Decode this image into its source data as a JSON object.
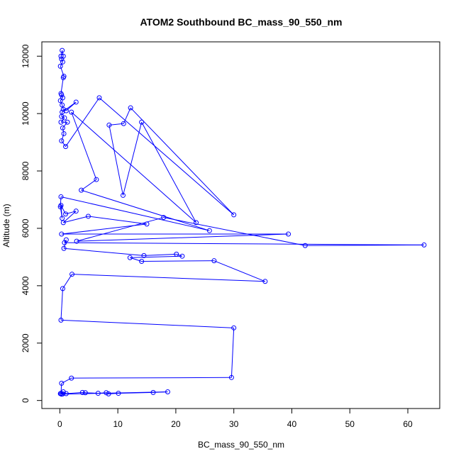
{
  "chart_data": {
    "type": "line",
    "title": "ATOM2 Southbound BC_mass_90_550_nm",
    "xlabel": "BC_mass_90_550_nm",
    "ylabel": "Altitude (m)",
    "xlim": [
      -3.1,
      65.5
    ],
    "ylim": [
      -280,
      12500
    ],
    "x_ticks": [
      0,
      10,
      20,
      30,
      40,
      50,
      60
    ],
    "y_ticks": [
      0,
      2000,
      4000,
      6000,
      8000,
      10000,
      12000
    ],
    "grid": false,
    "legend": "none",
    "markers": "open-circle",
    "color": "#0000ff",
    "series": [
      {
        "values": [
          [
            0.2,
            12000
          ],
          [
            0.4,
            12200
          ],
          [
            0.6,
            12000
          ],
          [
            0.3,
            11900
          ],
          [
            0.5,
            11800
          ],
          [
            0.1,
            11650
          ],
          [
            0.7,
            11300
          ],
          [
            0.6,
            11250
          ],
          [
            0.2,
            10700
          ],
          [
            0.3,
            10650
          ],
          [
            0.5,
            10550
          ],
          [
            0.1,
            10450
          ],
          [
            0.4,
            10300
          ],
          [
            0.6,
            10150
          ],
          [
            1.1,
            10100
          ],
          [
            2.8,
            10400
          ],
          [
            0.4,
            10050
          ],
          [
            0.3,
            9900
          ],
          [
            0.8,
            9850
          ],
          [
            0.2,
            9700
          ],
          [
            1.3,
            9700
          ],
          [
            0.5,
            9500
          ],
          [
            0.7,
            9300
          ],
          [
            0.3,
            9050
          ],
          [
            1.0,
            8850
          ],
          [
            6.8,
            10550
          ],
          [
            30.0,
            6470
          ],
          [
            12.2,
            10200
          ],
          [
            11.0,
            9650
          ],
          [
            8.5,
            9600
          ],
          [
            10.9,
            7150
          ],
          [
            14.1,
            9700
          ],
          [
            23.5,
            6200
          ],
          [
            2.0,
            10050
          ],
          [
            6.3,
            7700
          ],
          [
            3.7,
            7330
          ],
          [
            25.8,
            5920
          ],
          [
            0.2,
            7100
          ],
          [
            0.1,
            6750
          ],
          [
            0.4,
            6350
          ],
          [
            0.2,
            6800
          ],
          [
            1.0,
            6500
          ],
          [
            2.8,
            6600
          ],
          [
            0.6,
            6200
          ],
          [
            4.9,
            6420
          ],
          [
            15.0,
            6150
          ],
          [
            0.3,
            5800
          ],
          [
            39.4,
            5800
          ],
          [
            2.9,
            5550
          ],
          [
            17.9,
            6380
          ],
          [
            42.3,
            5400
          ],
          [
            62.8,
            5420
          ],
          [
            0.8,
            5500
          ],
          [
            1.1,
            5600
          ],
          [
            0.7,
            5300
          ],
          [
            14.5,
            5050
          ],
          [
            20.1,
            5100
          ],
          [
            21.1,
            5030
          ],
          [
            12.1,
            4980
          ],
          [
            14.1,
            4850
          ],
          [
            26.6,
            4870
          ],
          [
            35.4,
            4150
          ],
          [
            2.1,
            4400
          ],
          [
            0.5,
            3900
          ],
          [
            0.2,
            2800
          ],
          [
            30.0,
            2530
          ],
          [
            29.6,
            800
          ],
          [
            2.0,
            780
          ],
          [
            0.3,
            600
          ],
          [
            0.2,
            250
          ],
          [
            0.6,
            300
          ],
          [
            1.1,
            240
          ],
          [
            3.9,
            280
          ],
          [
            4.4,
            270
          ],
          [
            6.6,
            250
          ],
          [
            8.0,
            270
          ],
          [
            8.4,
            230
          ],
          [
            10.1,
            250
          ],
          [
            16.1,
            280
          ],
          [
            18.6,
            300
          ],
          [
            0.3,
            220
          ],
          [
            0.1,
            240
          ],
          [
            0.5,
            230
          ]
        ]
      }
    ]
  }
}
